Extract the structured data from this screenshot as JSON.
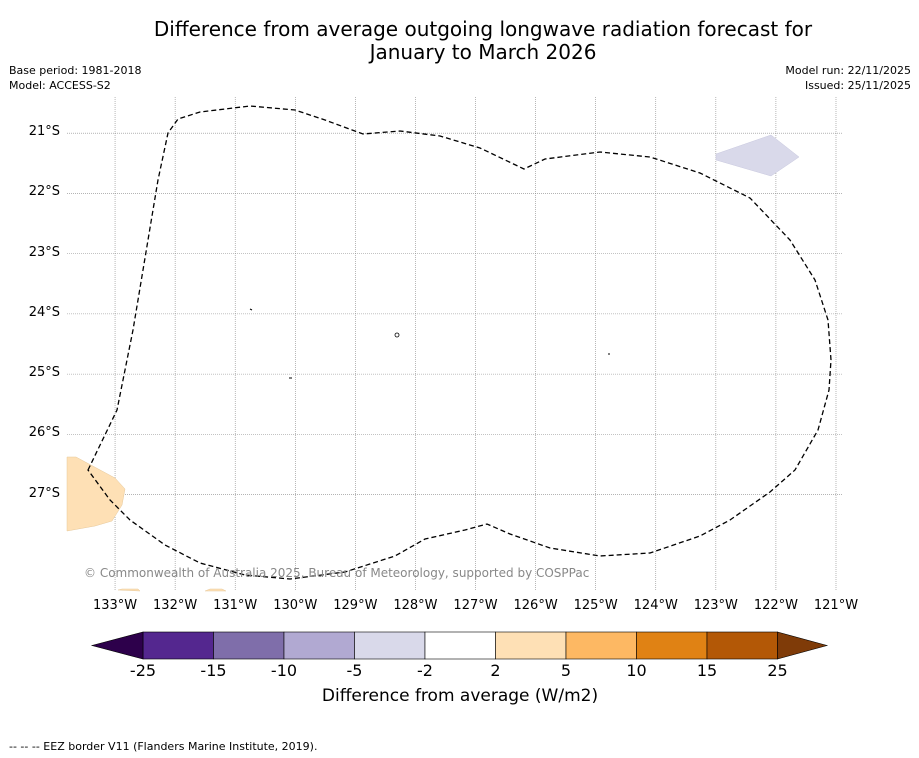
{
  "chart_data": {
    "type": "map",
    "title_line1": "Difference from average outgoing longwave radiation forecast for",
    "title_line2": "January to March 2026",
    "base_period": "Base period: 1981-2018",
    "model": "Model: ACCESS-S2",
    "model_run": "Model run: 22/11/2025",
    "issued": "Issued: 25/11/2025",
    "lat_labels": [
      "21°S",
      "22°S",
      "23°S",
      "24°S",
      "25°S",
      "26°S",
      "27°S"
    ],
    "lon_labels": [
      "133°W",
      "132°W",
      "131°W",
      "130°W",
      "129°W",
      "128°W",
      "127°W",
      "126°W",
      "125°W",
      "124°W",
      "123°W",
      "122°W",
      "121°W"
    ],
    "lat_range": [
      -28.6,
      -20.4
    ],
    "lon_range": [
      -133.8,
      -120.9
    ],
    "colorbar": {
      "ticks": [
        "-25",
        "-15",
        "-10",
        "-5",
        "-2",
        "2",
        "5",
        "10",
        "15",
        "25"
      ],
      "colors": [
        "#54278f",
        "#7f6eaa",
        "#b1a9d2",
        "#d9d9ea",
        "#ffffff",
        "#fee0b5",
        "#fdb863",
        "#e08214",
        "#b35806"
      ],
      "under_color": "#2d004b",
      "over_color": "#7f3b08",
      "label": "Difference from average (W/m2)"
    },
    "anomaly_patches": [
      {
        "category": "-5 to -2",
        "color": "#d9d9ea",
        "region": "near 122°W 21.4°S"
      },
      {
        "category": "2 to 5",
        "color": "#fee0b5",
        "region": "near 133.5°W 27°S"
      }
    ],
    "credit": "© Commonwealth of Australia 2025, Bureau of Meteorology, supported by COSPPac",
    "footer": "--  --  -- EEZ border V11 (Flanders Marine Institute, 2019)."
  }
}
